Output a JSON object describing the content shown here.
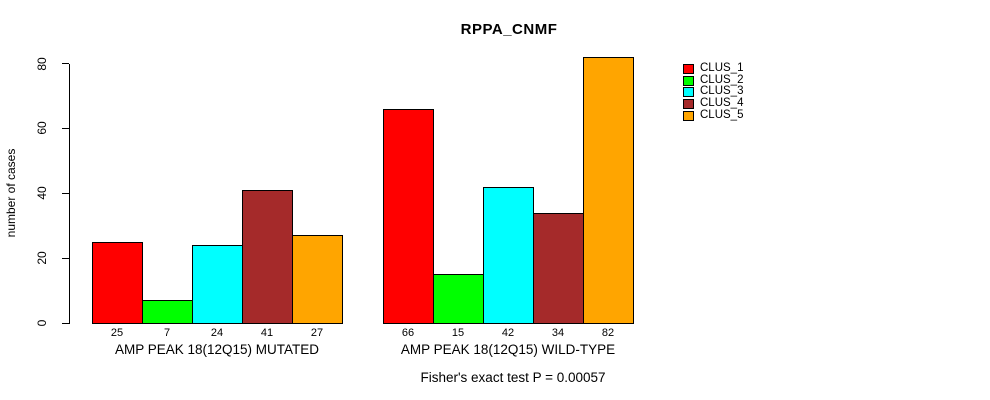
{
  "chart_data": {
    "type": "bar",
    "title": "RPPA_CNMF",
    "ylabel": "number of cases",
    "xlabel": "",
    "ylim": [
      0,
      80
    ],
    "yticks": [
      0,
      20,
      40,
      60,
      80
    ],
    "grid": false,
    "legend_position": "right",
    "bar_borders": "#000000",
    "categories": [
      "AMP PEAK 18(12Q15) MUTATED",
      "AMP PEAK 18(12Q15) WILD-TYPE"
    ],
    "series": [
      {
        "name": "CLUS_1",
        "color": "#FF0000",
        "values": [
          25,
          66
        ]
      },
      {
        "name": "CLUS_2",
        "color": "#00FF00",
        "values": [
          7,
          15
        ]
      },
      {
        "name": "CLUS_3",
        "color": "#00FFFF",
        "values": [
          24,
          42
        ]
      },
      {
        "name": "CLUS_4",
        "color": "#A52A2A",
        "values": [
          41,
          34
        ]
      },
      {
        "name": "CLUS_5",
        "color": "#FFA500",
        "values": [
          27,
          82
        ]
      }
    ],
    "bar_value_labels": [
      [
        25,
        7,
        24,
        41,
        27
      ],
      [
        66,
        15,
        42,
        34,
        82
      ]
    ],
    "footer": "Fisher's exact test P = 0.00057"
  }
}
